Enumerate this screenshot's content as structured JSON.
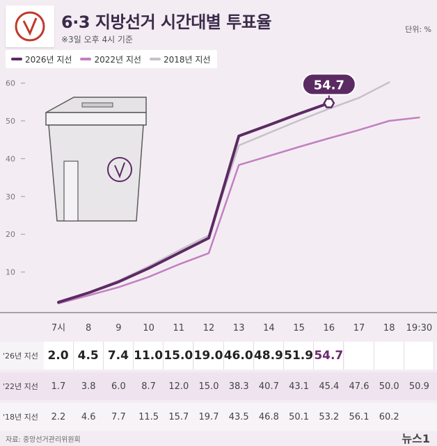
{
  "header": {
    "title": "6·3 지방선거 시간대별 투표율",
    "subtitle": "※3일 오후 4시 기준",
    "unit": "단위: %"
  },
  "colors": {
    "series_2026": "#5c2a63",
    "series_2022": "#c27fc0",
    "series_2018": "#c8bfcb",
    "background": "#f3edf3"
  },
  "icons": {
    "logo": "ballot-check-icon",
    "illustration": "ballot-box-icon"
  },
  "chart_data": {
    "type": "line",
    "categories": [
      "7시",
      "8",
      "9",
      "10",
      "11",
      "12",
      "13",
      "14",
      "15",
      "16",
      "17",
      "18",
      "19:30"
    ],
    "ylim": [
      0,
      60
    ],
    "yticks": [
      10,
      20,
      30,
      40,
      50,
      60
    ],
    "series": [
      {
        "name": "2026년 지선",
        "values": [
          2.0,
          4.5,
          7.4,
          11.0,
          15.0,
          19.0,
          46.0,
          48.9,
          51.9,
          54.7,
          null,
          null,
          null
        ]
      },
      {
        "name": "2022년 지선",
        "values": [
          1.7,
          3.8,
          6.0,
          8.7,
          12.0,
          15.0,
          38.3,
          40.7,
          43.1,
          45.4,
          47.6,
          50.0,
          50.9
        ]
      },
      {
        "name": "2018년 지선",
        "values": [
          2.2,
          4.6,
          7.7,
          11.5,
          15.7,
          19.7,
          43.5,
          46.8,
          50.1,
          53.2,
          56.1,
          60.2,
          null
        ]
      }
    ],
    "callout": "54.7",
    "legend_position": "top-left",
    "grid": false
  },
  "table": {
    "rows": [
      {
        "label": "'26년 지선",
        "values": [
          "2.0",
          "4.5",
          "7.4",
          "11.0",
          "15.0",
          "19.0",
          "46.0",
          "48.9",
          "51.9",
          "54.7",
          "",
          "",
          ""
        ]
      },
      {
        "label": "'22년 지선",
        "values": [
          "1.7",
          "3.8",
          "6.0",
          "8.7",
          "12.0",
          "15.0",
          "38.3",
          "40.7",
          "43.1",
          "45.4",
          "47.6",
          "50.0",
          "50.9"
        ]
      },
      {
        "label": "'18년 지선",
        "values": [
          "2.2",
          "4.6",
          "7.7",
          "11.5",
          "15.7",
          "19.7",
          "43.5",
          "46.8",
          "50.1",
          "53.2",
          "56.1",
          "60.2",
          ""
        ]
      }
    ]
  },
  "footer": {
    "source": "자료: 중앙선거관리위원회",
    "brand": "뉴스1"
  }
}
